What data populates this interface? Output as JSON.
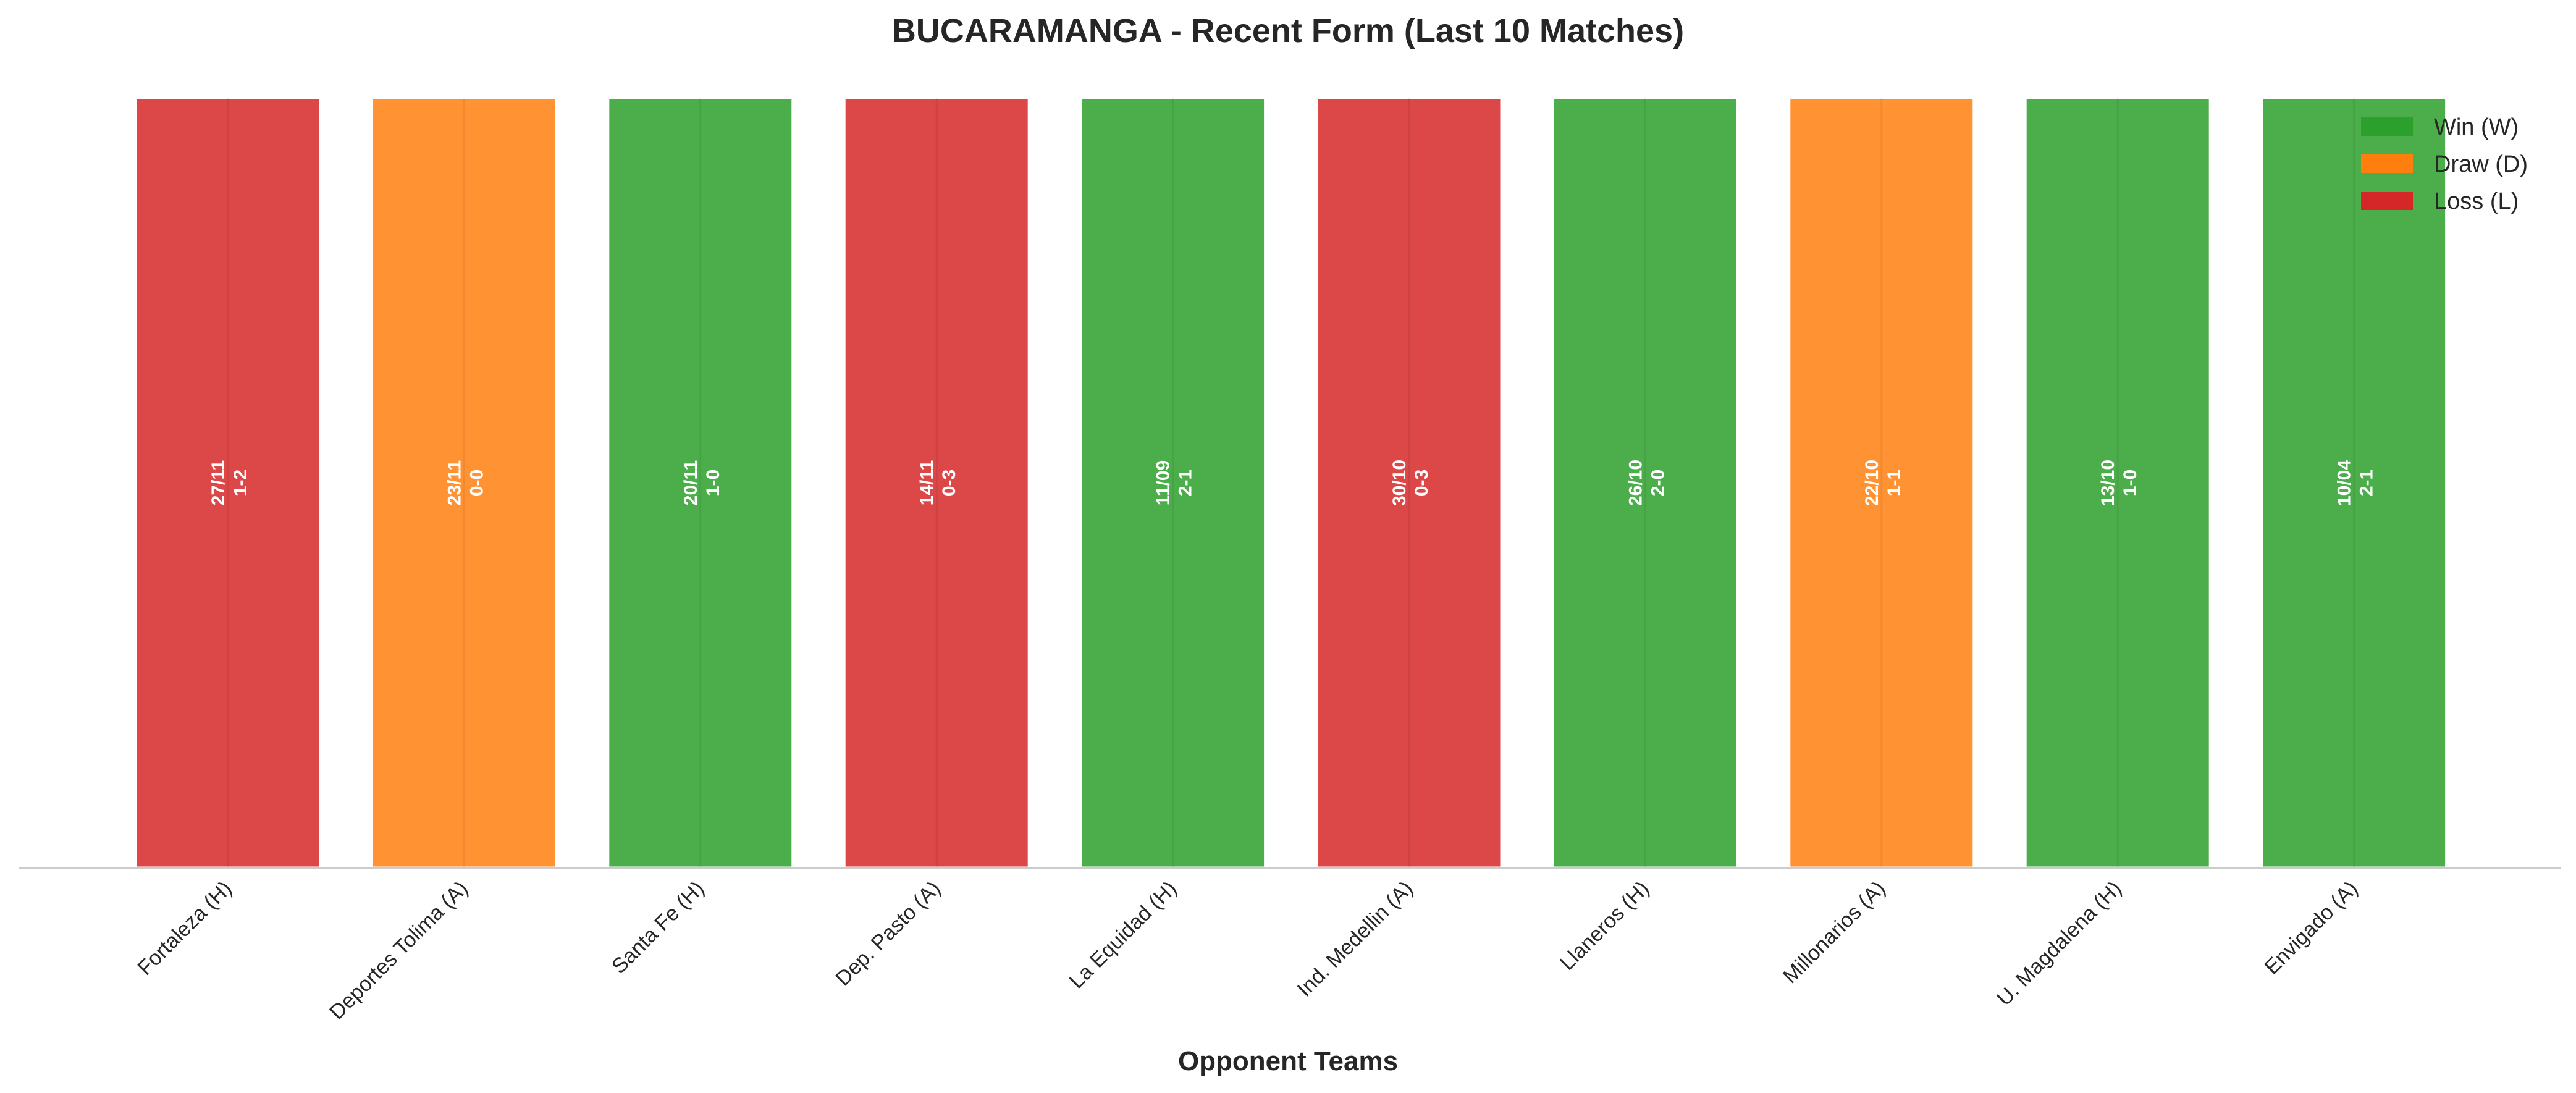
{
  "chart_data": {
    "type": "bar",
    "title": "BUCARAMANGA - Recent Form (Last 10 Matches)",
    "xlabel": "Opponent Teams",
    "ylabel": "",
    "ylim": [
      0,
      1
    ],
    "grid": false,
    "legend_position": "top-right",
    "legend": [
      {
        "key": "W",
        "label": "Win (W)",
        "color": "#2ca02c"
      },
      {
        "key": "D",
        "label": "Draw (D)",
        "color": "#ff7f0e"
      },
      {
        "key": "L",
        "label": "Loss (L)",
        "color": "#d62728"
      }
    ],
    "categories": [
      "Fortaleza (H)",
      "Deportes Tolima (A)",
      "Santa Fe (H)",
      "Dep. Pasto (A)",
      "La Equidad (H)",
      "Ind. Medellin (A)",
      "Llaneros (H)",
      "Millonarios (A)",
      "U. Magdalena (H)",
      "Envigado (A)"
    ],
    "values": [
      1,
      1,
      1,
      1,
      1,
      1,
      1,
      1,
      1,
      1
    ],
    "results": [
      "L",
      "D",
      "W",
      "L",
      "W",
      "L",
      "W",
      "D",
      "W",
      "W"
    ],
    "dates": [
      "27/11",
      "23/11",
      "20/11",
      "14/11",
      "11/09",
      "30/10",
      "26/10",
      "22/10",
      "13/10",
      "10/04"
    ],
    "scores": [
      "1-2",
      "0-0",
      "1-0",
      "0-3",
      "2-1",
      "0-3",
      "2-0",
      "1-1",
      "1-0",
      "2-1"
    ]
  }
}
